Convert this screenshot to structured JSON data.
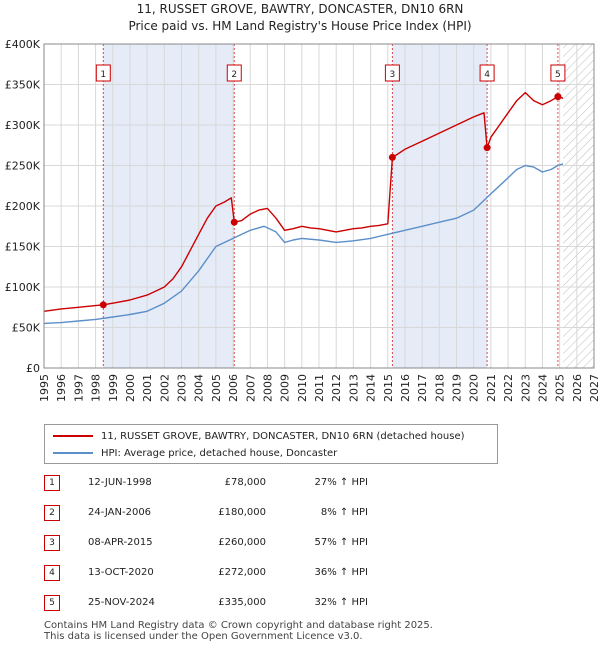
{
  "header": {
    "line1": "11, RUSSET GROVE, BAWTRY, DONCASTER, DN10 6RN",
    "line2": "Price paid vs. HM Land Registry's House Price Index (HPI)"
  },
  "chart_data": {
    "type": "line",
    "title": "11, RUSSET GROVE, BAWTRY, DONCASTER, DN10 6RN",
    "subtitle": "Price paid vs. HM Land Registry's House Price Index (HPI)",
    "xlabel": "",
    "ylabel": "",
    "xlim": [
      1995,
      2027
    ],
    "ylim": [
      0,
      400000
    ],
    "x_ticks": [
      "1995",
      "1996",
      "1997",
      "1998",
      "1999",
      "2000",
      "2001",
      "2002",
      "2003",
      "2004",
      "2005",
      "2006",
      "2007",
      "2008",
      "2009",
      "2010",
      "2011",
      "2012",
      "2013",
      "2014",
      "2015",
      "2016",
      "2017",
      "2018",
      "2019",
      "2020",
      "2021",
      "2022",
      "2023",
      "2024",
      "2025",
      "2026",
      "2027"
    ],
    "y_ticks": [
      {
        "value": 0,
        "label": "£0"
      },
      {
        "value": 50000,
        "label": "£50K"
      },
      {
        "value": 100000,
        "label": "£100K"
      },
      {
        "value": 150000,
        "label": "£150K"
      },
      {
        "value": 200000,
        "label": "£200K"
      },
      {
        "value": 250000,
        "label": "£250K"
      },
      {
        "value": 300000,
        "label": "£300K"
      },
      {
        "value": 350000,
        "label": "£350K"
      },
      {
        "value": 400000,
        "label": "£400K"
      }
    ],
    "grid": true,
    "colors": {
      "property": "#cc0000",
      "hpi": "#5b8fc9",
      "shade": "#dce6f5"
    },
    "series": [
      {
        "name": "11, RUSSET GROVE, BAWTRY, DONCASTER, DN10 6RN (detached house)",
        "x": [
          1995.0,
          1996.0,
          1997.0,
          1997.5,
          1998.0,
          1998.45,
          1999.0,
          2000.0,
          2001.0,
          2001.5,
          2002.0,
          2002.5,
          2003.0,
          2003.5,
          2004.0,
          2004.5,
          2005.0,
          2005.5,
          2005.9,
          2006.07,
          2006.5,
          2007.0,
          2007.5,
          2008.0,
          2008.5,
          2009.0,
          2009.5,
          2010.0,
          2010.5,
          2011.0,
          2011.5,
          2012.0,
          2012.5,
          2013.0,
          2013.5,
          2014.0,
          2014.5,
          2015.0,
          2015.27,
          2015.5,
          2016.0,
          2017.0,
          2018.0,
          2019.0,
          2020.0,
          2020.6,
          2020.78,
          2021.0,
          2021.5,
          2022.0,
          2022.5,
          2023.0,
          2023.5,
          2024.0,
          2024.5,
          2024.9,
          2025.2
        ],
        "values": [
          70000,
          73000,
          75000,
          76000,
          77000,
          78000,
          80000,
          84000,
          90000,
          95000,
          100000,
          110000,
          125000,
          145000,
          165000,
          185000,
          200000,
          205000,
          210000,
          180000,
          182000,
          190000,
          195000,
          197000,
          185000,
          170000,
          172000,
          175000,
          173000,
          172000,
          170000,
          168000,
          170000,
          172000,
          173000,
          175000,
          176000,
          178000,
          260000,
          263000,
          270000,
          280000,
          290000,
          300000,
          310000,
          315000,
          272000,
          285000,
          300000,
          315000,
          330000,
          340000,
          330000,
          325000,
          330000,
          335000,
          333000
        ]
      },
      {
        "name": "HPI: Average price, detached house, Doncaster",
        "x": [
          1995.0,
          1996.0,
          1997.0,
          1998.0,
          1999.0,
          2000.0,
          2001.0,
          2002.0,
          2003.0,
          2004.0,
          2005.0,
          2006.0,
          2007.0,
          2007.8,
          2008.5,
          2009.0,
          2009.5,
          2010.0,
          2011.0,
          2012.0,
          2013.0,
          2014.0,
          2015.0,
          2016.0,
          2017.0,
          2018.0,
          2019.0,
          2020.0,
          2020.5,
          2021.0,
          2021.5,
          2022.0,
          2022.5,
          2023.0,
          2023.5,
          2024.0,
          2024.5,
          2024.9,
          2025.2
        ],
        "values": [
          55000,
          56000,
          58000,
          60000,
          63000,
          66000,
          70000,
          80000,
          95000,
          120000,
          150000,
          160000,
          170000,
          175000,
          168000,
          155000,
          158000,
          160000,
          158000,
          155000,
          157000,
          160000,
          165000,
          170000,
          175000,
          180000,
          185000,
          195000,
          205000,
          215000,
          225000,
          235000,
          245000,
          250000,
          248000,
          242000,
          245000,
          250000,
          252000
        ]
      }
    ],
    "sales": [
      {
        "num": "1",
        "x": 1998.45,
        "value": 78000
      },
      {
        "num": "2",
        "x": 2006.07,
        "value": 180000
      },
      {
        "num": "3",
        "x": 2015.27,
        "value": 260000
      },
      {
        "num": "4",
        "x": 2020.78,
        "value": 272000
      },
      {
        "num": "5",
        "x": 2024.9,
        "value": 335000
      }
    ],
    "shaded_ranges": [
      [
        1998.45,
        2006.07
      ],
      [
        2015.27,
        2020.78
      ]
    ],
    "hatched_from": 2025.2
  },
  "legend": {
    "property": "11, RUSSET GROVE, BAWTRY, DONCASTER, DN10 6RN (detached house)",
    "hpi": "HPI: Average price, detached house, Doncaster"
  },
  "sales_table": [
    {
      "num": "1",
      "date": "12-JUN-1998",
      "price": "£78,000",
      "hpi": "27% ↑ HPI"
    },
    {
      "num": "2",
      "date": "24-JAN-2006",
      "price": "£180,000",
      "hpi": "8% ↑ HPI"
    },
    {
      "num": "3",
      "date": "08-APR-2015",
      "price": "£260,000",
      "hpi": "57% ↑ HPI"
    },
    {
      "num": "4",
      "date": "13-OCT-2020",
      "price": "£272,000",
      "hpi": "36% ↑ HPI"
    },
    {
      "num": "5",
      "date": "25-NOV-2024",
      "price": "£335,000",
      "hpi": "32% ↑ HPI"
    }
  ],
  "footer": {
    "line1": "Contains HM Land Registry data © Crown copyright and database right 2025.",
    "line2": "This data is licensed under the Open Government Licence v3.0."
  }
}
